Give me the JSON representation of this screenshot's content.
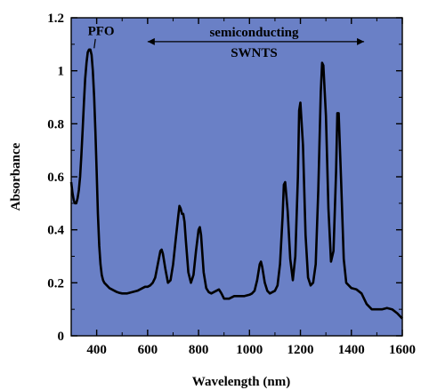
{
  "colors": {
    "plot_background": "#6a80c6",
    "line": "#000000"
  },
  "chart_data": {
    "type": "line",
    "xlabel": "Wavelength (nm)",
    "ylabel": "Absorbance",
    "xlim": [
      300,
      1600
    ],
    "ylim": [
      0,
      1.2
    ],
    "x_ticks": [
      400,
      600,
      800,
      1000,
      1200,
      1400,
      1600
    ],
    "y_ticks": [
      0,
      0.2,
      0.4,
      0.6,
      0.8,
      1,
      1.2
    ],
    "y_tick_labels": [
      "0",
      "0.2",
      "0.4",
      "0.6",
      "0.8",
      "1",
      "1.2"
    ],
    "grid": false,
    "annotations": [
      {
        "text": "PFO",
        "x": 385,
        "y": 1.08
      },
      {
        "text": "semiconducting",
        "text2": "SWNTS",
        "x_from": 600,
        "x_to": 1450,
        "y": 1.11
      }
    ],
    "series": [
      {
        "x": [
          300,
          305,
          310,
          315,
          320,
          325,
          330,
          335,
          340,
          345,
          350,
          355,
          360,
          365,
          370,
          375,
          380,
          385,
          390,
          395,
          400,
          405,
          410,
          415,
          420,
          425,
          430,
          440,
          450,
          460,
          470,
          480,
          490,
          500,
          520,
          540,
          560,
          580,
          590,
          600,
          610,
          620,
          630,
          640,
          650,
          655,
          660,
          670,
          680,
          690,
          700,
          710,
          720,
          725,
          730,
          735,
          740,
          745,
          750,
          760,
          770,
          780,
          790,
          800,
          805,
          810,
          820,
          830,
          840,
          850,
          860,
          870,
          880,
          890,
          900,
          920,
          940,
          960,
          980,
          1000,
          1010,
          1020,
          1030,
          1040,
          1045,
          1050,
          1060,
          1070,
          1080,
          1090,
          1100,
          1110,
          1120,
          1130,
          1135,
          1140,
          1150,
          1160,
          1170,
          1180,
          1190,
          1195,
          1200,
          1210,
          1220,
          1230,
          1240,
          1250,
          1260,
          1270,
          1280,
          1285,
          1290,
          1300,
          1310,
          1320,
          1330,
          1340,
          1345,
          1350,
          1360,
          1370,
          1380,
          1400,
          1420,
          1440,
          1460,
          1480,
          1500,
          1520,
          1540,
          1560,
          1580,
          1600
        ],
        "values": [
          0.58,
          0.54,
          0.51,
          0.5,
          0.5,
          0.52,
          0.55,
          0.6,
          0.68,
          0.78,
          0.88,
          0.97,
          1.03,
          1.07,
          1.08,
          1.08,
          1.06,
          1.0,
          0.9,
          0.77,
          0.62,
          0.46,
          0.34,
          0.27,
          0.23,
          0.21,
          0.2,
          0.19,
          0.18,
          0.175,
          0.17,
          0.165,
          0.162,
          0.16,
          0.16,
          0.165,
          0.17,
          0.18,
          0.185,
          0.185,
          0.19,
          0.2,
          0.22,
          0.27,
          0.32,
          0.325,
          0.31,
          0.25,
          0.2,
          0.21,
          0.27,
          0.36,
          0.45,
          0.49,
          0.48,
          0.46,
          0.46,
          0.43,
          0.36,
          0.24,
          0.2,
          0.23,
          0.32,
          0.4,
          0.41,
          0.38,
          0.24,
          0.18,
          0.165,
          0.16,
          0.165,
          0.17,
          0.175,
          0.16,
          0.14,
          0.14,
          0.15,
          0.15,
          0.15,
          0.155,
          0.16,
          0.17,
          0.21,
          0.27,
          0.28,
          0.26,
          0.2,
          0.17,
          0.16,
          0.165,
          0.17,
          0.19,
          0.27,
          0.45,
          0.57,
          0.58,
          0.47,
          0.29,
          0.21,
          0.3,
          0.6,
          0.85,
          0.88,
          0.72,
          0.38,
          0.22,
          0.19,
          0.2,
          0.27,
          0.55,
          0.92,
          1.03,
          1.02,
          0.83,
          0.48,
          0.28,
          0.32,
          0.62,
          0.84,
          0.84,
          0.58,
          0.29,
          0.2,
          0.18,
          0.175,
          0.16,
          0.12,
          0.1,
          0.1,
          0.1,
          0.105,
          0.1,
          0.085,
          0.065
        ]
      }
    ]
  }
}
